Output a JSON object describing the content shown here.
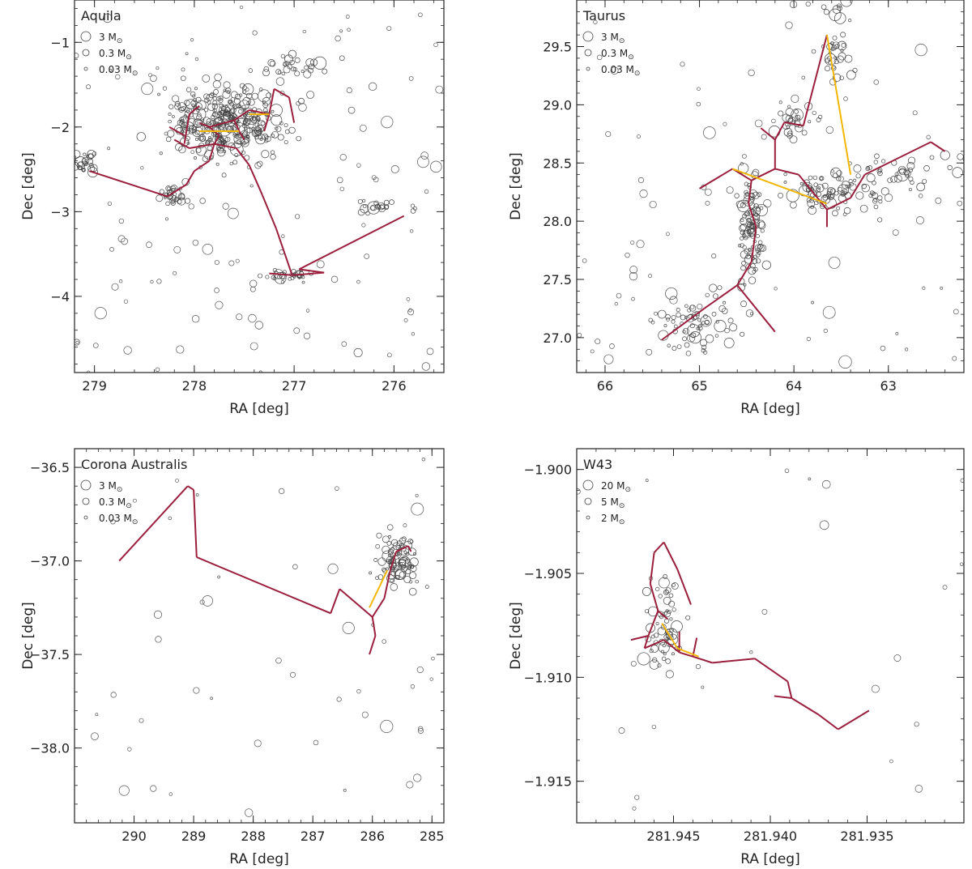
{
  "legend_unit": "M",
  "chart_data": [
    {
      "type": "scatter",
      "title": "Aquila",
      "xlabel": "RA [deg]",
      "ylabel": "Dec [deg]",
      "xlim": [
        279.2,
        275.5
      ],
      "ylim": [
        -4.9,
        -0.5
      ],
      "xticks": [
        279,
        278,
        277,
        276
      ],
      "yticks": [
        -1,
        -2,
        -3,
        -4
      ],
      "xtick_labels": [
        "279",
        "278",
        "277",
        "276"
      ],
      "ytick_labels": [
        "−1",
        "−2",
        "−3",
        "−4"
      ],
      "legend": [
        {
          "label": "3 M",
          "mass": 3
        },
        {
          "label": "0.3 M",
          "mass": 0.3
        },
        {
          "label": "0.03 M",
          "mass": 0.03
        }
      ],
      "mst_edges": [
        [
          [
            279.05,
            -2.52
          ],
          [
            278.27,
            -2.82
          ]
        ],
        [
          [
            278.27,
            -2.82
          ],
          [
            278.08,
            -2.68
          ]
        ],
        [
          [
            278.08,
            -2.68
          ],
          [
            278.0,
            -2.52
          ]
        ],
        [
          [
            278.0,
            -2.52
          ],
          [
            277.85,
            -2.4
          ]
        ],
        [
          [
            277.85,
            -2.4
          ],
          [
            277.8,
            -2.2
          ]
        ],
        [
          [
            277.8,
            -2.2
          ],
          [
            277.58,
            -2.25
          ]
        ],
        [
          [
            277.58,
            -2.25
          ],
          [
            277.45,
            -2.45
          ]
        ],
        [
          [
            277.45,
            -2.45
          ],
          [
            277.32,
            -2.8
          ]
        ],
        [
          [
            277.32,
            -2.8
          ],
          [
            277.18,
            -3.2
          ]
        ],
        [
          [
            277.18,
            -3.2
          ],
          [
            277.02,
            -3.75
          ]
        ],
        [
          [
            277.02,
            -3.75
          ],
          [
            276.7,
            -3.72
          ]
        ],
        [
          [
            276.7,
            -3.72
          ],
          [
            276.95,
            -3.68
          ]
        ],
        [
          [
            276.95,
            -3.68
          ],
          [
            275.9,
            -3.05
          ]
        ],
        [
          [
            277.02,
            -3.75
          ],
          [
            277.25,
            -3.73
          ]
        ],
        [
          [
            277.8,
            -2.2
          ],
          [
            278.05,
            -2.25
          ]
        ],
        [
          [
            278.05,
            -2.25
          ],
          [
            278.2,
            -2.15
          ]
        ],
        [
          [
            278.1,
            -2.2
          ],
          [
            278.05,
            -1.85
          ]
        ],
        [
          [
            278.05,
            -1.85
          ],
          [
            277.95,
            -1.75
          ]
        ],
        [
          [
            278.25,
            -2.0
          ],
          [
            278.1,
            -2.1
          ]
        ],
        [
          [
            277.8,
            -2.2
          ],
          [
            277.75,
            -2.1
          ]
        ],
        [
          [
            277.75,
            -2.1
          ],
          [
            277.85,
            -2.0
          ]
        ],
        [
          [
            277.85,
            -2.0
          ],
          [
            277.95,
            -1.95
          ]
        ],
        [
          [
            277.85,
            -2.0
          ],
          [
            277.6,
            -1.92
          ]
        ],
        [
          [
            277.6,
            -1.92
          ],
          [
            277.55,
            -2.05
          ]
        ],
        [
          [
            277.55,
            -2.05
          ],
          [
            277.5,
            -2.15
          ]
        ],
        [
          [
            277.6,
            -1.92
          ],
          [
            277.45,
            -1.8
          ]
        ],
        [
          [
            277.45,
            -1.8
          ],
          [
            277.25,
            -1.85
          ]
        ],
        [
          [
            277.25,
            -1.85
          ],
          [
            277.2,
            -1.55
          ]
        ],
        [
          [
            277.2,
            -1.55
          ],
          [
            277.05,
            -1.65
          ]
        ],
        [
          [
            277.05,
            -1.65
          ],
          [
            277.0,
            -1.95
          ]
        ],
        [
          [
            277.25,
            -1.85
          ],
          [
            277.3,
            -2.05
          ]
        ]
      ],
      "yellow_edges": [
        [
          [
            277.95,
            -2.05
          ],
          [
            277.75,
            -2.05
          ]
        ],
        [
          [
            277.75,
            -2.05
          ],
          [
            277.55,
            -2.05
          ]
        ],
        [
          [
            277.45,
            -1.85
          ],
          [
            277.25,
            -1.85
          ]
        ]
      ],
      "clusters": [
        [
          277.7,
          -1.95,
          0.6,
          0.45,
          350
        ],
        [
          279.1,
          -2.4,
          0.1,
          0.15,
          25
        ],
        [
          278.2,
          -2.8,
          0.15,
          0.1,
          30
        ],
        [
          277.05,
          -3.75,
          0.2,
          0.08,
          30
        ],
        [
          276.1,
          -2.95,
          0.3,
          0.1,
          22
        ],
        [
          277.0,
          -1.3,
          0.4,
          0.2,
          30
        ]
      ],
      "scatter_n": 120
    },
    {
      "type": "scatter",
      "title": "Taurus",
      "xlabel": "RA [deg]",
      "ylabel": "Dec [deg]",
      "xlim": [
        66.3,
        62.2
      ],
      "ylim": [
        26.7,
        29.9
      ],
      "xticks": [
        66,
        65,
        64,
        63
      ],
      "yticks": [
        27.0,
        27.5,
        28.0,
        28.5,
        29.0,
        29.5
      ],
      "xtick_labels": [
        "66",
        "65",
        "64",
        "63"
      ],
      "ytick_labels": [
        "27.0",
        "27.5",
        "28.0",
        "28.5",
        "29.0",
        "29.5"
      ],
      "legend": [
        {
          "label": "3 M",
          "mass": 3
        },
        {
          "label": "0.3 M",
          "mass": 0.3
        },
        {
          "label": "0.03 M",
          "mass": 0.03
        }
      ],
      "mst_edges": [
        [
          [
            65.4,
            26.98
          ],
          [
            64.95,
            27.25
          ]
        ],
        [
          [
            64.95,
            27.25
          ],
          [
            64.6,
            27.45
          ]
        ],
        [
          [
            64.6,
            27.45
          ],
          [
            64.45,
            27.65
          ]
        ],
        [
          [
            64.6,
            27.45
          ],
          [
            64.2,
            27.05
          ]
        ],
        [
          [
            64.45,
            27.65
          ],
          [
            64.4,
            27.95
          ]
        ],
        [
          [
            64.4,
            27.95
          ],
          [
            64.48,
            28.15
          ]
        ],
        [
          [
            64.48,
            28.15
          ],
          [
            64.45,
            28.35
          ]
        ],
        [
          [
            64.45,
            28.35
          ],
          [
            64.65,
            28.45
          ]
        ],
        [
          [
            64.65,
            28.45
          ],
          [
            65.0,
            28.28
          ]
        ],
        [
          [
            64.45,
            28.35
          ],
          [
            64.2,
            28.45
          ]
        ],
        [
          [
            64.2,
            28.45
          ],
          [
            64.2,
            28.7
          ]
        ],
        [
          [
            64.2,
            28.7
          ],
          [
            64.35,
            28.8
          ]
        ],
        [
          [
            64.2,
            28.7
          ],
          [
            64.1,
            28.85
          ]
        ],
        [
          [
            64.1,
            28.85
          ],
          [
            63.9,
            28.82
          ]
        ],
        [
          [
            63.9,
            28.82
          ],
          [
            63.65,
            29.6
          ]
        ],
        [
          [
            64.2,
            28.45
          ],
          [
            63.95,
            28.4
          ]
        ],
        [
          [
            63.95,
            28.4
          ],
          [
            63.65,
            28.1
          ]
        ],
        [
          [
            63.65,
            28.1
          ],
          [
            63.65,
            27.95
          ]
        ],
        [
          [
            63.65,
            28.1
          ],
          [
            63.4,
            28.2
          ]
        ],
        [
          [
            63.4,
            28.2
          ],
          [
            63.25,
            28.4
          ]
        ],
        [
          [
            63.25,
            28.4
          ],
          [
            62.55,
            28.68
          ]
        ],
        [
          [
            62.55,
            28.68
          ],
          [
            62.4,
            28.6
          ]
        ]
      ],
      "yellow_edges": [
        [
          [
            64.65,
            28.45
          ],
          [
            63.65,
            28.15
          ]
        ],
        [
          [
            63.65,
            29.6
          ],
          [
            63.4,
            28.4
          ]
        ]
      ],
      "clusters": [
        [
          65.1,
          27.15,
          0.45,
          0.25,
          70
        ],
        [
          64.45,
          27.9,
          0.15,
          0.5,
          110
        ],
        [
          63.6,
          28.25,
          0.5,
          0.2,
          90
        ],
        [
          62.9,
          28.45,
          0.6,
          0.2,
          40
        ],
        [
          63.55,
          29.5,
          0.2,
          0.35,
          40
        ],
        [
          64.0,
          28.85,
          0.25,
          0.15,
          30
        ]
      ],
      "scatter_n": 80
    },
    {
      "type": "scatter",
      "title": "Corona Australis",
      "xlabel": "RA [deg]",
      "ylabel": "Dec [deg]",
      "xlim": [
        291.0,
        284.8
      ],
      "ylim": [
        -38.4,
        -36.4
      ],
      "xticks": [
        290,
        289,
        288,
        287,
        286,
        285
      ],
      "yticks": [
        -36.5,
        -37.0,
        -37.5,
        -38.0
      ],
      "xtick_labels": [
        "290",
        "289",
        "288",
        "287",
        "286",
        "285"
      ],
      "ytick_labels": [
        "−36.5",
        "−37.0",
        "−37.5",
        "−38.0"
      ],
      "legend": [
        {
          "label": "3 M",
          "mass": 3
        },
        {
          "label": "0.3 M",
          "mass": 0.3
        },
        {
          "label": "0.03 M",
          "mass": 0.03
        }
      ],
      "mst_edges": [
        [
          [
            290.25,
            -37.0
          ],
          [
            289.1,
            -36.6
          ]
        ],
        [
          [
            289.1,
            -36.6
          ],
          [
            289.0,
            -36.62
          ]
        ],
        [
          [
            289.0,
            -36.62
          ],
          [
            288.95,
            -36.98
          ]
        ],
        [
          [
            288.95,
            -36.98
          ],
          [
            286.7,
            -37.28
          ]
        ],
        [
          [
            286.7,
            -37.28
          ],
          [
            286.55,
            -37.15
          ]
        ],
        [
          [
            286.55,
            -37.15
          ],
          [
            286.0,
            -37.3
          ]
        ],
        [
          [
            286.0,
            -37.3
          ],
          [
            285.95,
            -37.4
          ]
        ],
        [
          [
            285.95,
            -37.4
          ],
          [
            286.05,
            -37.5
          ]
        ],
        [
          [
            286.0,
            -37.3
          ],
          [
            285.8,
            -37.2
          ]
        ],
        [
          [
            285.8,
            -37.2
          ],
          [
            285.7,
            -37.05
          ]
        ],
        [
          [
            285.7,
            -37.05
          ],
          [
            285.6,
            -36.95
          ]
        ],
        [
          [
            285.6,
            -36.95
          ],
          [
            285.4,
            -36.92
          ]
        ],
        [
          [
            285.4,
            -36.92
          ],
          [
            285.35,
            -36.95
          ]
        ]
      ],
      "yellow_edges": [
        [
          [
            286.05,
            -37.25
          ],
          [
            285.75,
            -37.05
          ]
        ]
      ],
      "clusters": [
        [
          285.6,
          -37.0,
          0.35,
          0.15,
          90
        ]
      ],
      "scatter_n": 50
    },
    {
      "type": "scatter",
      "title": "W43",
      "xlabel": "RA [deg]",
      "ylabel": "Dec [deg]",
      "xlim": [
        281.95,
        281.93
      ],
      "ylim": [
        -1.917,
        -1.899
      ],
      "xticks": [
        281.945,
        281.94,
        281.935
      ],
      "yticks": [
        -1.9,
        -1.905,
        -1.91,
        -1.915
      ],
      "xtick_labels": [
        "281.945",
        "281.940",
        "281.935"
      ],
      "ytick_labels": [
        "−1.900",
        "−1.905",
        "−1.910",
        "−1.915"
      ],
      "legend": [
        {
          "label": "20 M",
          "mass": 20
        },
        {
          "label": "5 M",
          "mass": 5
        },
        {
          "label": "2 M",
          "mass": 2
        }
      ],
      "mst_edges": [
        [
          [
            281.9472,
            -1.9082
          ],
          [
            281.9463,
            -1.908
          ]
        ],
        [
          [
            281.9463,
            -1.908
          ],
          [
            281.9458,
            -1.9068
          ]
        ],
        [
          [
            281.9458,
            -1.9068
          ],
          [
            281.9462,
            -1.9055
          ]
        ],
        [
          [
            281.9462,
            -1.9055
          ],
          [
            281.946,
            -1.904
          ]
        ],
        [
          [
            281.946,
            -1.904
          ],
          [
            281.9455,
            -1.9035
          ]
        ],
        [
          [
            281.9455,
            -1.9035
          ],
          [
            281.9448,
            -1.9048
          ]
        ],
        [
          [
            281.9448,
            -1.9048
          ],
          [
            281.9441,
            -1.9065
          ]
        ],
        [
          [
            281.9458,
            -1.9068
          ],
          [
            281.9453,
            -1.9072
          ]
        ],
        [
          [
            281.9463,
            -1.908
          ],
          [
            281.9465,
            -1.9086
          ]
        ],
        [
          [
            281.9465,
            -1.9086
          ],
          [
            281.9455,
            -1.9082
          ]
        ],
        [
          [
            281.9455,
            -1.9082
          ],
          [
            281.9447,
            -1.9088
          ]
        ],
        [
          [
            281.9447,
            -1.9088
          ],
          [
            281.944,
            -1.909
          ]
        ],
        [
          [
            281.944,
            -1.909
          ],
          [
            281.943,
            -1.9093
          ]
        ],
        [
          [
            281.944,
            -1.909
          ],
          [
            281.9438,
            -1.9081
          ]
        ],
        [
          [
            281.943,
            -1.9093
          ],
          [
            281.9408,
            -1.9091
          ]
        ],
        [
          [
            281.9408,
            -1.9091
          ],
          [
            281.9391,
            -1.9102
          ]
        ],
        [
          [
            281.9391,
            -1.9102
          ],
          [
            281.9389,
            -1.911
          ]
        ],
        [
          [
            281.9389,
            -1.911
          ],
          [
            281.9398,
            -1.9109
          ]
        ],
        [
          [
            281.9389,
            -1.911
          ],
          [
            281.9375,
            -1.9118
          ]
        ],
        [
          [
            281.9375,
            -1.9118
          ],
          [
            281.9365,
            -1.9125
          ]
        ],
        [
          [
            281.9365,
            -1.9125
          ],
          [
            281.9349,
            -1.9116
          ]
        ],
        [
          [
            281.9447,
            -1.9088
          ],
          [
            281.9447,
            -1.9078
          ]
        ]
      ],
      "yellow_edges": [
        [
          [
            281.9456,
            -1.9074
          ],
          [
            281.9448,
            -1.9086
          ]
        ],
        [
          [
            281.9448,
            -1.9086
          ],
          [
            281.9437,
            -1.909
          ]
        ]
      ],
      "clusters": [
        [
          281.9455,
          -1.9075,
          0.0012,
          0.0022,
          60
        ]
      ],
      "scatter_n": 25
    }
  ]
}
